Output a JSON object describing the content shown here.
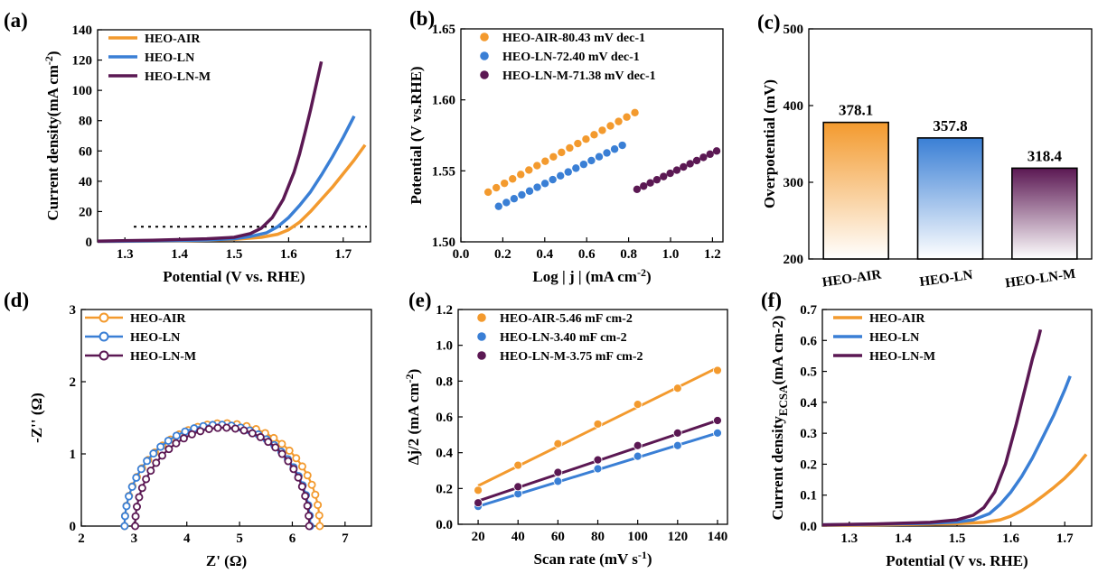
{
  "colors": {
    "air": "#f39a2e",
    "ln": "#3a7fd5",
    "lnm": "#5b1853"
  },
  "chart_data": [
    {
      "id": "a",
      "panel": "(a)",
      "type": "line",
      "xlabel": "Potential (V vs. RHE)",
      "ylabel": "Current density(mA cm-2)",
      "ylabel_sup": "-2",
      "xlim": [
        1.25,
        1.75
      ],
      "ylim": [
        0,
        140
      ],
      "xticks": [
        1.3,
        1.4,
        1.5,
        1.6,
        1.7
      ],
      "yticks": [
        0,
        20,
        40,
        60,
        80,
        100,
        120,
        140
      ],
      "reference_line": {
        "y": 10,
        "style": "dotted"
      },
      "legend": [
        "HEO-AIR",
        "HEO-LN",
        "HEO-LN-M"
      ],
      "series": [
        {
          "name": "HEO-AIR",
          "color": "air",
          "x": [
            1.25,
            1.35,
            1.45,
            1.5,
            1.55,
            1.58,
            1.6,
            1.62,
            1.64,
            1.66,
            1.68,
            1.7,
            1.72,
            1.74
          ],
          "y": [
            0.3,
            0.5,
            1,
            1.6,
            3,
            5,
            8,
            13,
            20,
            28,
            36,
            45,
            54,
            64
          ]
        },
        {
          "name": "HEO-LN",
          "color": "ln",
          "x": [
            1.25,
            1.35,
            1.45,
            1.5,
            1.53,
            1.56,
            1.58,
            1.6,
            1.62,
            1.64,
            1.66,
            1.68,
            1.7,
            1.72
          ],
          "y": [
            0.3,
            0.6,
            1.2,
            2,
            3.5,
            6,
            10,
            16,
            24,
            33,
            44,
            56,
            69,
            83
          ]
        },
        {
          "name": "HEO-LN-M",
          "color": "lnm",
          "x": [
            1.25,
            1.35,
            1.45,
            1.5,
            1.53,
            1.55,
            1.57,
            1.59,
            1.61,
            1.62,
            1.63,
            1.64,
            1.65,
            1.66
          ],
          "y": [
            0.5,
            1,
            2,
            3,
            5.5,
            9,
            16,
            28,
            46,
            58,
            72,
            87,
            103,
            119
          ]
        }
      ]
    },
    {
      "id": "b",
      "panel": "(b)",
      "type": "scatter",
      "xlabel": "Log | j | (mA cm-2)",
      "xlabel_sup": "-2",
      "ylabel": "Potential (V vs.RHE)",
      "xlim": [
        0,
        1.25
      ],
      "ylim": [
        1.5,
        1.65
      ],
      "xticks": [
        0.0,
        0.2,
        0.4,
        0.6,
        0.8,
        1.0,
        1.2
      ],
      "yticks": [
        1.5,
        1.55,
        1.6,
        1.65
      ],
      "legend": [
        "HEO-AIR-80.43 mV dec-1",
        "HEO-LN-72.40 mV dec-1",
        "HEO-LN-M-71.38 mV dec-1"
      ],
      "series": [
        {
          "name": "HEO-AIR-80.43 mV dec-1",
          "color": "air",
          "x0": 0.13,
          "x1": 0.83,
          "y0": 1.535,
          "y1": 1.591,
          "n": 19
        },
        {
          "name": "HEO-LN-72.40 mV dec-1",
          "color": "ln",
          "x0": 0.18,
          "x1": 0.77,
          "y0": 1.525,
          "y1": 1.568,
          "n": 17
        },
        {
          "name": "HEO-LN-M-71.38 mV dec-1",
          "color": "lnm",
          "x0": 0.84,
          "x1": 1.22,
          "y0": 1.537,
          "y1": 1.564,
          "n": 13
        }
      ]
    },
    {
      "id": "c",
      "panel": "(c)",
      "type": "bar",
      "ylabel": "Overpotential (mV)",
      "ylim": [
        200,
        500
      ],
      "yticks": [
        200,
        300,
        400,
        500
      ],
      "categories": [
        "HEO-AIR",
        "HEO-LN",
        "HEO-LN-M"
      ],
      "values": [
        378.1,
        357.8,
        318.4
      ],
      "labels": [
        "378.1",
        "357.8",
        "318.4"
      ],
      "colors": [
        "air",
        "ln",
        "lnm"
      ]
    },
    {
      "id": "d",
      "panel": "(d)",
      "type": "scatter",
      "xlabel": "Z' (Ω)",
      "ylabel": "-Z'' (Ω)",
      "xlim": [
        2,
        7.5
      ],
      "ylim": [
        0,
        3
      ],
      "xticks": [
        2,
        3,
        4,
        5,
        6,
        7
      ],
      "yticks": [
        0,
        1,
        2,
        3
      ],
      "legend": [
        "HEO-AIR",
        "HEO-LN",
        "HEO-LN-M"
      ],
      "series": [
        {
          "name": "HEO-AIR",
          "color": "air",
          "center": 4.67,
          "radius": 1.85,
          "height": 1.39,
          "n": 32
        },
        {
          "name": "HEO-LN",
          "color": "ln",
          "center": 4.58,
          "radius": 1.76,
          "height": 1.37,
          "n": 32
        },
        {
          "name": "HEO-LN-M",
          "color": "lnm",
          "center": 4.67,
          "radius": 1.65,
          "height": 1.33,
          "n": 32
        }
      ]
    },
    {
      "id": "e",
      "panel": "(e)",
      "type": "scatter",
      "xlabel": "Scan rate (mV s-1)",
      "xlabel_sup": "-1",
      "ylabel": "Δj/2 (mA cm-2)",
      "ylabel_sup": "-2",
      "xlim": [
        10,
        145
      ],
      "ylim": [
        0,
        1.2
      ],
      "xticks": [
        20,
        40,
        60,
        80,
        100,
        120,
        140
      ],
      "yticks": [
        0.0,
        0.2,
        0.4,
        0.6,
        0.8,
        1.0,
        1.2
      ],
      "legend": [
        "HEO-AIR-5.46 mF cm-2",
        "HEO-LN-3.40 mF cm-2",
        "HEO-LN-M-3.75 mF cm-2"
      ],
      "series": [
        {
          "name": "HEO-AIR-5.46 mF cm-2",
          "color": "air",
          "x": [
            20,
            40,
            60,
            80,
            100,
            120,
            140
          ],
          "y": [
            0.19,
            0.33,
            0.45,
            0.56,
            0.67,
            0.76,
            0.86
          ],
          "fit": [
            0.215,
            0.875
          ]
        },
        {
          "name": "HEO-LN-3.40 mF cm-2",
          "color": "ln",
          "x": [
            20,
            40,
            60,
            80,
            100,
            120,
            140
          ],
          "y": [
            0.1,
            0.17,
            0.24,
            0.31,
            0.38,
            0.44,
            0.51
          ],
          "fit": [
            0.1,
            0.51
          ]
        },
        {
          "name": "HEO-LN-M-3.75 mF cm-2",
          "color": "lnm",
          "x": [
            20,
            40,
            60,
            80,
            100,
            120,
            140
          ],
          "y": [
            0.12,
            0.21,
            0.29,
            0.36,
            0.44,
            0.51,
            0.58
          ],
          "fit": [
            0.13,
            0.58
          ]
        }
      ]
    },
    {
      "id": "f",
      "panel": "(f)",
      "type": "line",
      "xlabel": "Potential (V vs. RHE)",
      "ylabel": "Current density",
      "ylabel_sub": "ECSA",
      "ylabel_tail": "(mA cm-2)",
      "xlim": [
        1.25,
        1.75
      ],
      "ylim": [
        0,
        0.7
      ],
      "xticks": [
        1.3,
        1.4,
        1.5,
        1.6,
        1.7
      ],
      "yticks": [
        0.0,
        0.1,
        0.2,
        0.3,
        0.4,
        0.5,
        0.6,
        0.7
      ],
      "legend": [
        "HEO-AIR",
        "HEO-LN",
        "HEO-LN-M"
      ],
      "series": [
        {
          "name": "HEO-AIR",
          "color": "air",
          "x": [
            1.25,
            1.35,
            1.45,
            1.5,
            1.55,
            1.58,
            1.6,
            1.62,
            1.64,
            1.66,
            1.68,
            1.7,
            1.72,
            1.74
          ],
          "y": [
            0.003,
            0.004,
            0.006,
            0.008,
            0.012,
            0.02,
            0.032,
            0.05,
            0.072,
            0.098,
            0.125,
            0.155,
            0.19,
            0.232
          ]
        },
        {
          "name": "HEO-LN",
          "color": "ln",
          "x": [
            1.25,
            1.35,
            1.45,
            1.5,
            1.53,
            1.56,
            1.58,
            1.6,
            1.62,
            1.64,
            1.66,
            1.68,
            1.7,
            1.71
          ],
          "y": [
            0.004,
            0.006,
            0.009,
            0.013,
            0.02,
            0.04,
            0.07,
            0.11,
            0.16,
            0.22,
            0.29,
            0.36,
            0.44,
            0.485
          ]
        },
        {
          "name": "HEO-LN-M",
          "color": "lnm",
          "x": [
            1.25,
            1.35,
            1.45,
            1.5,
            1.53,
            1.55,
            1.57,
            1.59,
            1.61,
            1.62,
            1.63,
            1.64,
            1.65,
            1.655
          ],
          "y": [
            0.004,
            0.007,
            0.012,
            0.02,
            0.035,
            0.06,
            0.11,
            0.2,
            0.33,
            0.4,
            0.47,
            0.54,
            0.6,
            0.635
          ]
        }
      ]
    }
  ]
}
